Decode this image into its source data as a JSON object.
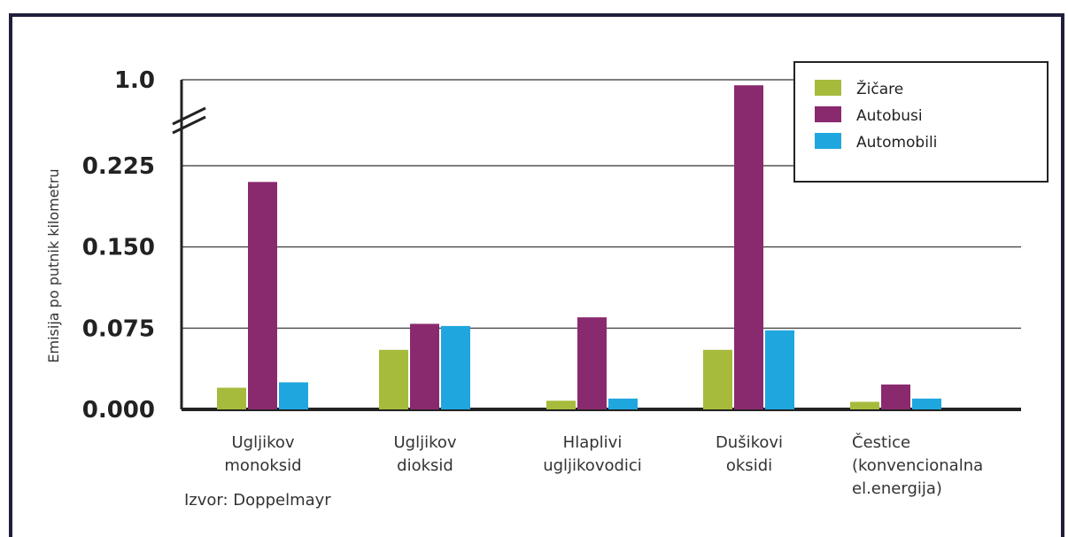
{
  "chart_data": {
    "type": "bar",
    "ylabel": "Emisija po putnik kilometru",
    "yticks": [
      "0.000",
      "0.075",
      "0.150",
      "0.225",
      "1.0"
    ],
    "axis_break": {
      "between": [
        0.225,
        1.0
      ]
    },
    "ylim": [
      0,
      1.0
    ],
    "grid": true,
    "legend_position": "top-right",
    "categories": [
      [
        "Ugljikov",
        "monoksid"
      ],
      [
        "Ugljikov",
        "dioksid"
      ],
      [
        "Hlaplivi",
        "ugljikovodici"
      ],
      [
        "Dušikovi",
        "oksidi"
      ],
      [
        "Čestice",
        "(konvencionalna",
        "el.energija)"
      ]
    ],
    "series": [
      {
        "name": "Žičare",
        "color": "#a6bb3c",
        "values": [
          0.02,
          0.055,
          0.008,
          0.055,
          0.007
        ]
      },
      {
        "name": "Autobusi",
        "color": "#8a2a6e",
        "values": [
          0.21,
          0.079,
          0.085,
          0.95,
          0.023
        ]
      },
      {
        "name": "Automobili",
        "color": "#1fa6de",
        "values": [
          0.025,
          0.077,
          0.01,
          0.073,
          0.01
        ]
      }
    ],
    "source": "Izvor: Doppelmayr"
  }
}
